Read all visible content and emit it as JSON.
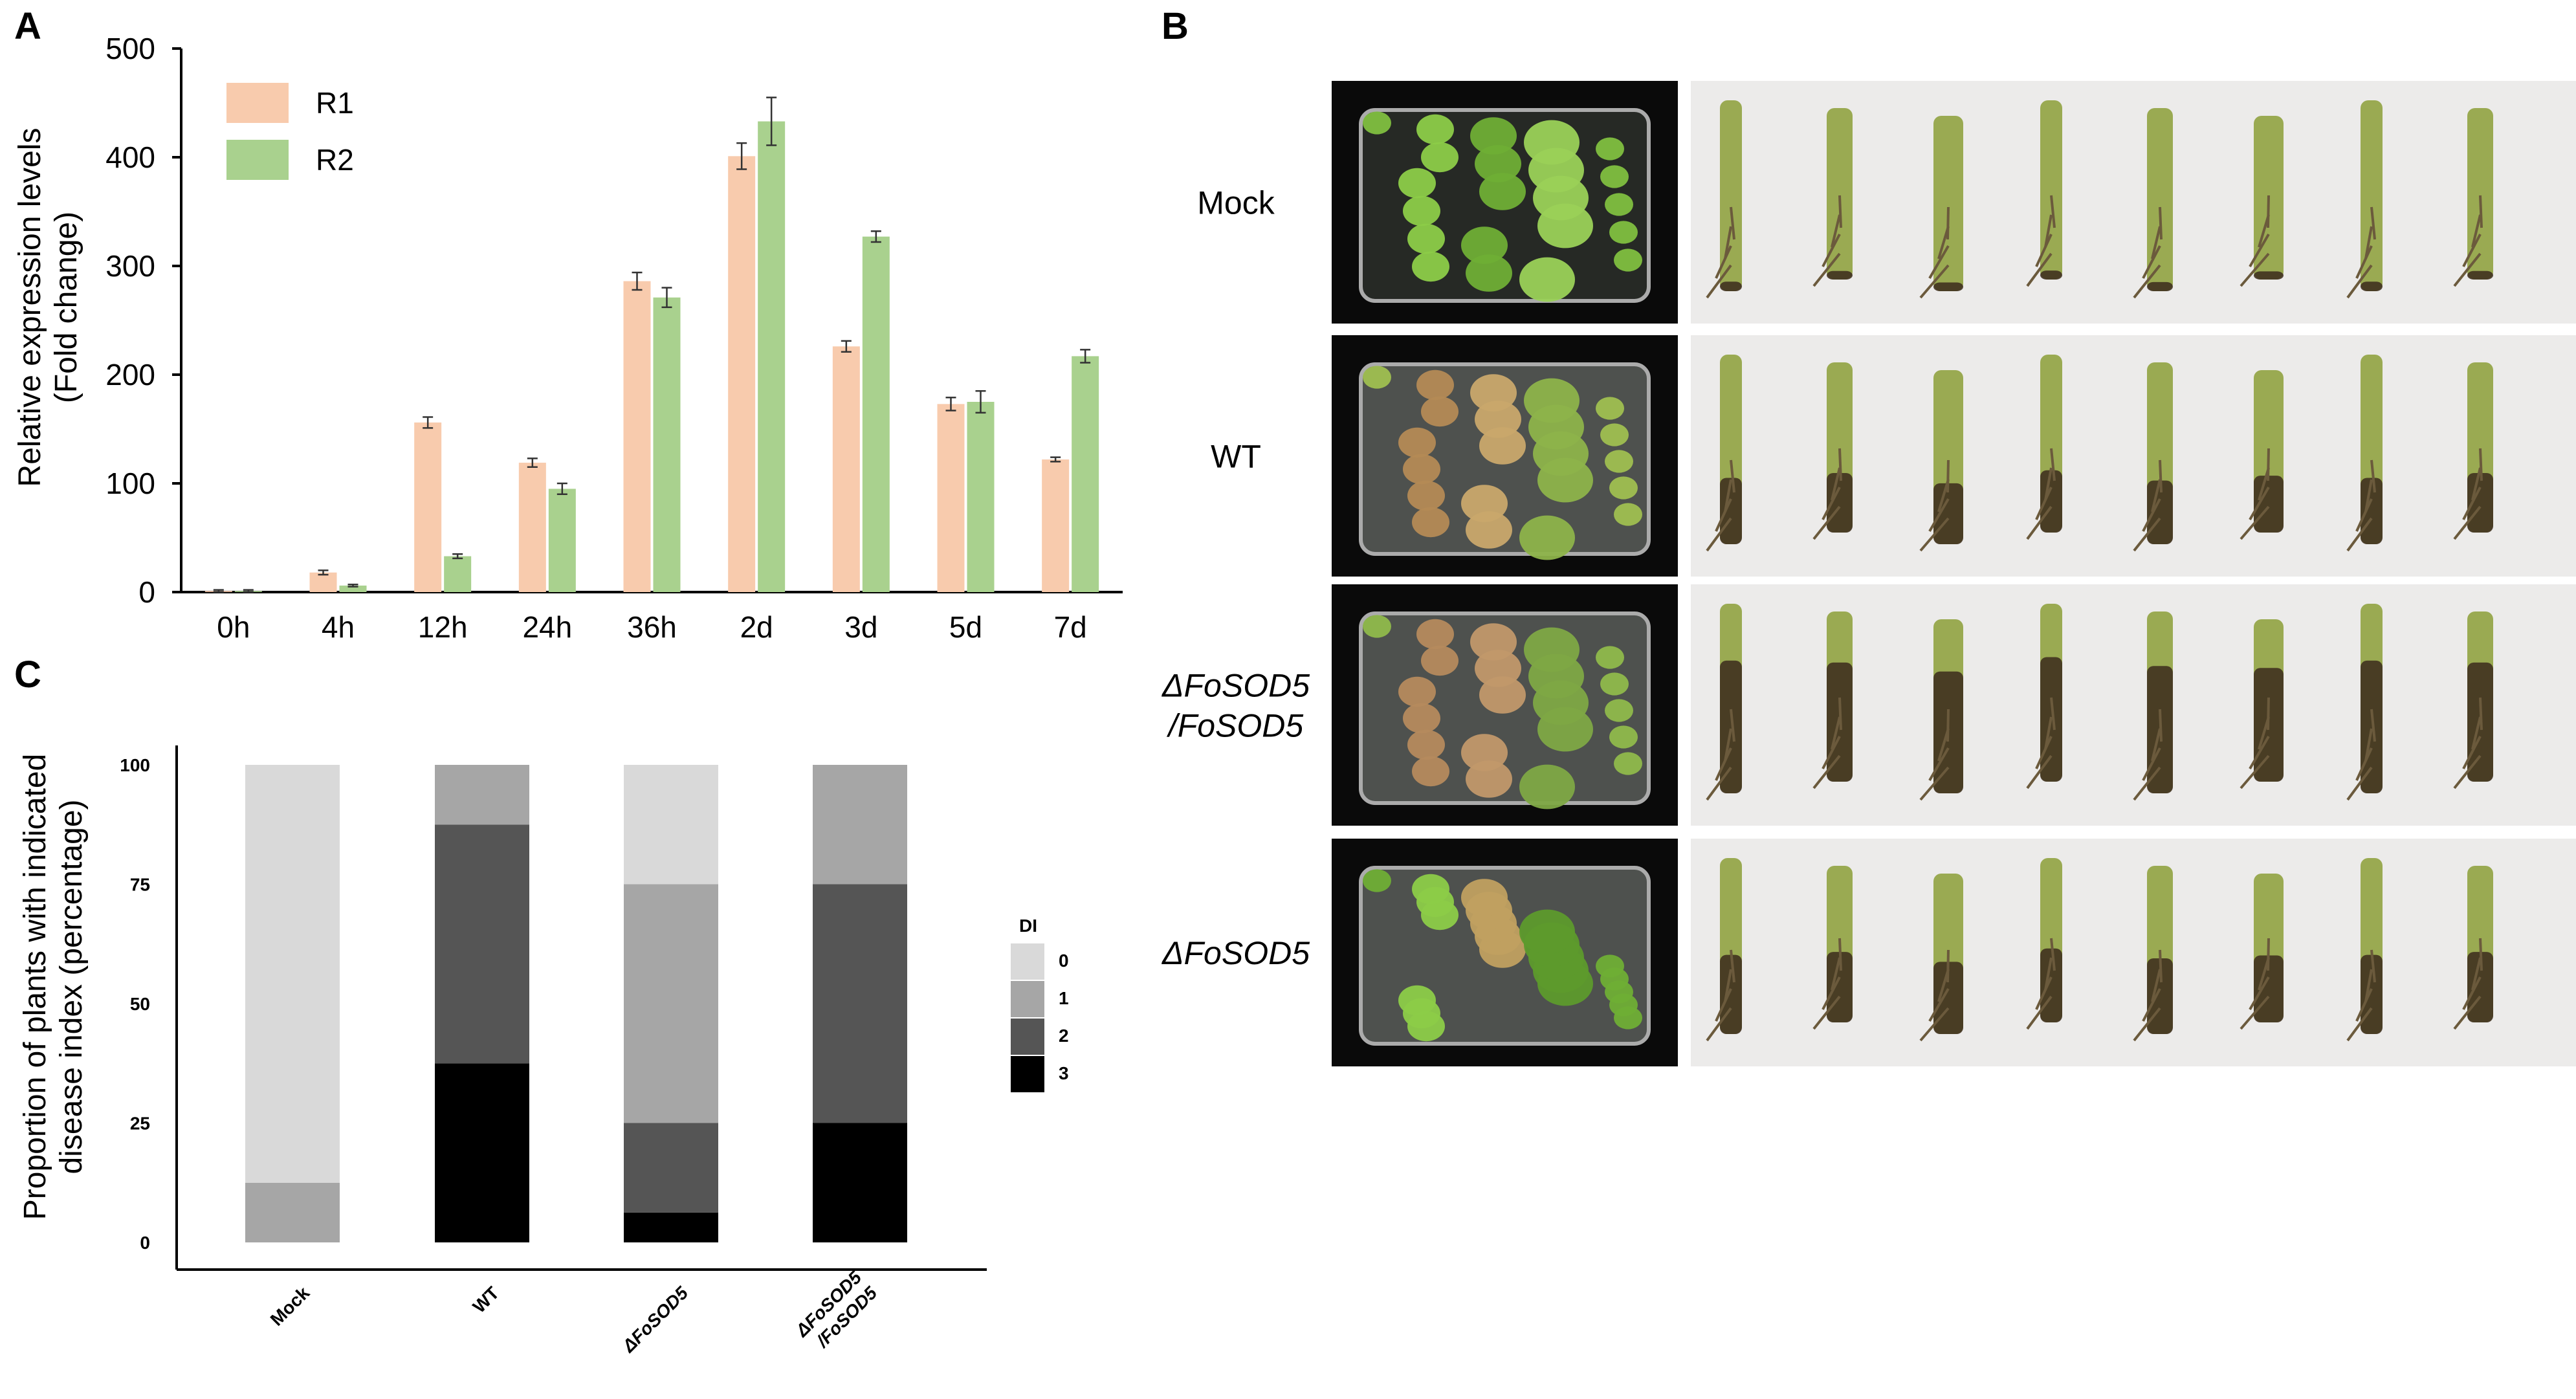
{
  "panels": {
    "a": "A",
    "b": "B",
    "c": "C"
  },
  "chart_data": [
    {
      "type": "bar",
      "panel": "A",
      "categories": [
        "0h",
        "4h",
        "12h",
        "24h",
        "36h",
        "2d",
        "3d",
        "5d",
        "7d"
      ],
      "series": [
        {
          "name": "R1",
          "color": "#f8cbad",
          "values": [
            1,
            18,
            156,
            119,
            286,
            401,
            226,
            173,
            122
          ],
          "errors": [
            1,
            2,
            5,
            4,
            8,
            12,
            5,
            6,
            2
          ]
        },
        {
          "name": "R2",
          "color": "#a9d18e",
          "values": [
            1,
            6,
            33,
            95,
            271,
            433,
            327,
            175,
            217
          ],
          "errors": [
            1,
            1,
            2,
            5,
            9,
            22,
            5,
            10,
            6
          ]
        }
      ],
      "xlabel": "",
      "ylabel": [
        "Relative expression levels",
        "(Fold change)"
      ],
      "ylim": [
        0,
        500
      ],
      "yticks": [
        0,
        100,
        200,
        300,
        400,
        500
      ],
      "legend_position": "top-left",
      "grid": false
    },
    {
      "type": "bar",
      "stacked": true,
      "panel": "C",
      "categories": [
        "Mock",
        "WT",
        "ΔFoSOD5",
        "ΔFoSOD5\n/FoSOD5"
      ],
      "category_italic": [
        false,
        false,
        true,
        true
      ],
      "series": [
        {
          "name": "3",
          "color": "#000000",
          "values": [
            0,
            37.5,
            6.25,
            25
          ]
        },
        {
          "name": "2",
          "color": "#555555",
          "values": [
            0,
            50,
            18.75,
            50
          ]
        },
        {
          "name": "1",
          "color": "#a6a6a6",
          "values": [
            12.5,
            12.5,
            50,
            25
          ]
        },
        {
          "name": "0",
          "color": "#d9d9d9",
          "values": [
            87.5,
            0,
            25,
            0
          ]
        }
      ],
      "legend_title": "DI",
      "legend_order": [
        "0",
        "1",
        "2",
        "3"
      ],
      "legend_position": "right",
      "xlabel": "",
      "ylabel": [
        "Proportion of plants with indicated",
        "disease index (percentage)"
      ],
      "ylim": [
        0,
        100
      ],
      "yticks": [
        0,
        25,
        50,
        75,
        100
      ],
      "grid": false
    }
  ],
  "panel_b": {
    "rows": [
      {
        "label": "Mock",
        "italic": false
      },
      {
        "label": "WT",
        "italic": false
      },
      {
        "label": "ΔFoSOD5\n/FoSOD5",
        "italic": true
      },
      {
        "label": "ΔFoSOD5",
        "italic": true
      }
    ]
  }
}
